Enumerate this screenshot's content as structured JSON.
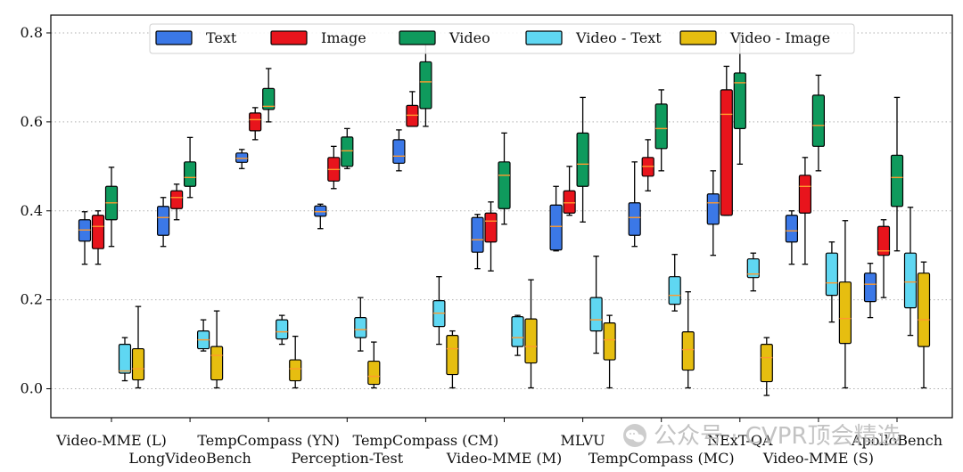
{
  "chart_data": {
    "type": "box",
    "title": "",
    "xlabel": "",
    "ylabel": "",
    "ylim": [
      -0.065,
      0.84
    ],
    "yticks": [
      0.0,
      0.2,
      0.4,
      0.6,
      0.8
    ],
    "ytick_labels": [
      "0.0",
      "0.2",
      "0.4",
      "0.6",
      "0.8"
    ],
    "grid": "horizontal-dotted",
    "legend_position": "top-center",
    "categories": [
      "Video-MME (L)",
      "LongVideoBench",
      "TempCompass (YN)",
      "Perception-Test",
      "TempCompass (CM)",
      "Video-MME (M)",
      "MLVU",
      "TempCompass (MC)",
      "NExT-QA",
      "Video-MME (S)",
      "ApolloBench"
    ],
    "series": [
      {
        "name": "Text",
        "color": "#3b78e7",
        "boxes": [
          {
            "min": 0.28,
            "q1": 0.332,
            "median": 0.357,
            "q3": 0.38,
            "max": 0.398
          },
          {
            "min": 0.32,
            "q1": 0.345,
            "median": 0.385,
            "q3": 0.41,
            "max": 0.43
          },
          {
            "min": 0.495,
            "q1": 0.509,
            "median": 0.518,
            "q3": 0.53,
            "max": 0.538
          },
          {
            "min": 0.36,
            "q1": 0.388,
            "median": 0.398,
            "q3": 0.411,
            "max": 0.415
          },
          {
            "min": 0.49,
            "q1": 0.507,
            "median": 0.523,
            "q3": 0.56,
            "max": 0.582
          },
          {
            "min": 0.27,
            "q1": 0.307,
            "median": 0.335,
            "q3": 0.385,
            "max": 0.392
          },
          {
            "min": 0.31,
            "q1": 0.312,
            "median": 0.365,
            "q3": 0.413,
            "max": 0.455
          },
          {
            "min": 0.32,
            "q1": 0.345,
            "median": 0.385,
            "q3": 0.418,
            "max": 0.51
          },
          {
            "min": 0.3,
            "q1": 0.37,
            "median": 0.418,
            "q3": 0.438,
            "max": 0.49
          },
          {
            "min": 0.28,
            "q1": 0.33,
            "median": 0.355,
            "q3": 0.39,
            "max": 0.4
          },
          {
            "min": 0.16,
            "q1": 0.196,
            "median": 0.235,
            "q3": 0.26,
            "max": 0.282
          }
        ]
      },
      {
        "name": "Image",
        "color": "#e8141c",
        "boxes": [
          {
            "min": 0.28,
            "q1": 0.315,
            "median": 0.365,
            "q3": 0.39,
            "max": 0.4
          },
          {
            "min": 0.38,
            "q1": 0.405,
            "median": 0.43,
            "q3": 0.445,
            "max": 0.46
          },
          {
            "min": 0.56,
            "q1": 0.58,
            "median": 0.605,
            "q3": 0.62,
            "max": 0.632
          },
          {
            "min": 0.45,
            "q1": 0.467,
            "median": 0.493,
            "q3": 0.52,
            "max": 0.545
          },
          {
            "min": 0.59,
            "q1": 0.59,
            "median": 0.615,
            "q3": 0.637,
            "max": 0.668
          },
          {
            "min": 0.265,
            "q1": 0.33,
            "median": 0.377,
            "q3": 0.395,
            "max": 0.42
          },
          {
            "min": 0.39,
            "q1": 0.395,
            "median": 0.418,
            "q3": 0.445,
            "max": 0.5
          },
          {
            "min": 0.445,
            "q1": 0.478,
            "median": 0.5,
            "q3": 0.52,
            "max": 0.56
          },
          {
            "min": 0.39,
            "q1": 0.39,
            "median": 0.617,
            "q3": 0.672,
            "max": 0.725
          },
          {
            "min": 0.28,
            "q1": 0.395,
            "median": 0.455,
            "q3": 0.48,
            "max": 0.52
          },
          {
            "min": 0.205,
            "q1": 0.3,
            "median": 0.31,
            "q3": 0.365,
            "max": 0.38
          }
        ]
      },
      {
        "name": "Video",
        "color": "#0f9a5d",
        "boxes": [
          {
            "min": 0.32,
            "q1": 0.38,
            "median": 0.418,
            "q3": 0.455,
            "max": 0.498
          },
          {
            "min": 0.43,
            "q1": 0.455,
            "median": 0.475,
            "q3": 0.51,
            "max": 0.565
          },
          {
            "min": 0.6,
            "q1": 0.628,
            "median": 0.635,
            "q3": 0.675,
            "max": 0.72
          },
          {
            "min": 0.495,
            "q1": 0.5,
            "median": 0.535,
            "q3": 0.566,
            "max": 0.585
          },
          {
            "min": 0.59,
            "q1": 0.63,
            "median": 0.69,
            "q3": 0.735,
            "max": 0.8
          },
          {
            "min": 0.37,
            "q1": 0.405,
            "median": 0.48,
            "q3": 0.51,
            "max": 0.575
          },
          {
            "min": 0.375,
            "q1": 0.455,
            "median": 0.505,
            "q3": 0.575,
            "max": 0.655
          },
          {
            "min": 0.49,
            "q1": 0.54,
            "median": 0.585,
            "q3": 0.64,
            "max": 0.672
          },
          {
            "min": 0.505,
            "q1": 0.585,
            "median": 0.688,
            "q3": 0.71,
            "max": 0.8
          },
          {
            "min": 0.49,
            "q1": 0.545,
            "median": 0.592,
            "q3": 0.66,
            "max": 0.705
          },
          {
            "min": 0.31,
            "q1": 0.41,
            "median": 0.475,
            "q3": 0.525,
            "max": 0.655
          }
        ]
      },
      {
        "name": "Video - Text",
        "color": "#5fd7f2",
        "boxes": [
          {
            "min": 0.018,
            "q1": 0.035,
            "median": 0.04,
            "q3": 0.1,
            "max": 0.115
          },
          {
            "min": 0.085,
            "q1": 0.09,
            "median": 0.11,
            "q3": 0.13,
            "max": 0.155
          },
          {
            "min": 0.1,
            "q1": 0.112,
            "median": 0.128,
            "q3": 0.155,
            "max": 0.165
          },
          {
            "min": 0.085,
            "q1": 0.115,
            "median": 0.133,
            "q3": 0.16,
            "max": 0.205
          },
          {
            "min": 0.1,
            "q1": 0.14,
            "median": 0.17,
            "q3": 0.198,
            "max": 0.252
          },
          {
            "min": 0.075,
            "q1": 0.095,
            "median": 0.115,
            "q3": 0.162,
            "max": 0.165
          },
          {
            "min": 0.08,
            "q1": 0.13,
            "median": 0.155,
            "q3": 0.205,
            "max": 0.298
          },
          {
            "min": 0.175,
            "q1": 0.19,
            "median": 0.21,
            "q3": 0.252,
            "max": 0.302
          },
          {
            "min": 0.22,
            "q1": 0.25,
            "median": 0.258,
            "q3": 0.292,
            "max": 0.305
          },
          {
            "min": 0.15,
            "q1": 0.21,
            "median": 0.238,
            "q3": 0.305,
            "max": 0.33
          },
          {
            "min": 0.12,
            "q1": 0.182,
            "median": 0.24,
            "q3": 0.305,
            "max": 0.408
          }
        ]
      },
      {
        "name": "Video - Image",
        "color": "#e6be10",
        "boxes": [
          {
            "min": 0.002,
            "q1": 0.02,
            "median": 0.045,
            "q3": 0.09,
            "max": 0.185
          },
          {
            "min": 0.002,
            "q1": 0.02,
            "median": 0.075,
            "q3": 0.095,
            "max": 0.175
          },
          {
            "min": 0.002,
            "q1": 0.018,
            "median": 0.045,
            "q3": 0.065,
            "max": 0.118
          },
          {
            "min": 0.002,
            "q1": 0.01,
            "median": 0.028,
            "q3": 0.062,
            "max": 0.105
          },
          {
            "min": 0.002,
            "q1": 0.032,
            "median": 0.09,
            "q3": 0.12,
            "max": 0.13
          },
          {
            "min": 0.002,
            "q1": 0.058,
            "median": 0.095,
            "q3": 0.157,
            "max": 0.245
          },
          {
            "min": 0.002,
            "q1": 0.065,
            "median": 0.11,
            "q3": 0.148,
            "max": 0.165
          },
          {
            "min": 0.002,
            "q1": 0.042,
            "median": 0.088,
            "q3": 0.128,
            "max": 0.218
          },
          {
            "min": -0.015,
            "q1": 0.016,
            "median": 0.07,
            "q3": 0.1,
            "max": 0.115
          },
          {
            "min": 0.002,
            "q1": 0.102,
            "median": 0.158,
            "q3": 0.24,
            "max": 0.378
          },
          {
            "min": 0.002,
            "q1": 0.095,
            "median": 0.155,
            "q3": 0.26,
            "max": 0.285
          }
        ]
      }
    ]
  },
  "colors": {
    "median": "#ff9a2e",
    "whisker": "#000000",
    "grid": "#b0b0b0"
  },
  "watermark": {
    "icon": "wechat-icon",
    "text": "公众号 · CVPR顶会精选"
  }
}
